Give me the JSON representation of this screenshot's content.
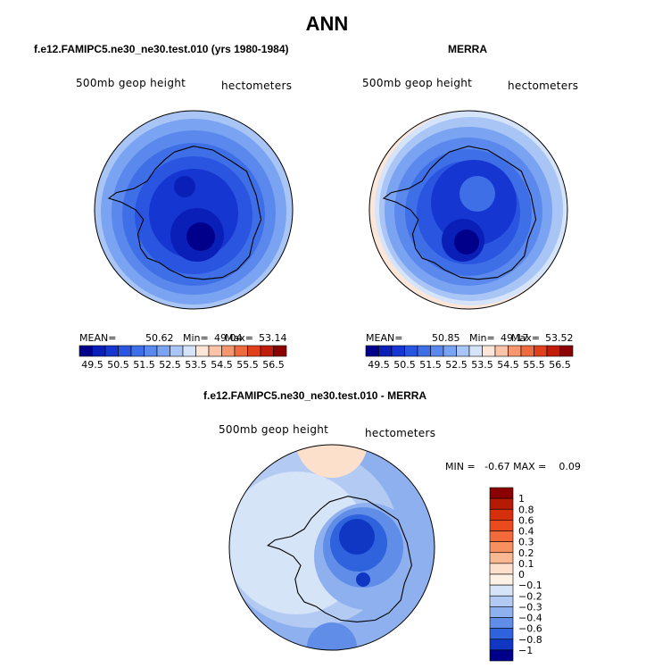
{
  "title": "ANN",
  "panel_left": {
    "case": "f.e12.FAMIPC5.ne30_ne30.test.010 (yrs 1980-1984)",
    "field": "500mb geop height",
    "units": "hectometers",
    "mean_label": "MEAN=",
    "mean": "50.62",
    "min_label": "Min=",
    "min": "49.04",
    "max_label": "Max=",
    "max": "53.14"
  },
  "panel_right": {
    "case": "MERRA",
    "field": "500mb geop height",
    "units": "hectometers",
    "mean_label": "MEAN=",
    "mean": "50.85",
    "min_label": "Min=",
    "min": "49.17",
    "max_label": "Max=",
    "max": "53.52"
  },
  "panel_diff": {
    "case": "f.e12.FAMIPC5.ne30_ne30.test.010 - MERRA",
    "field": "500mb geop height",
    "units": "hectometers",
    "minmax": "MIN =   -0.67 MAX =    0.09"
  },
  "chart_data": [
    {
      "type": "heatmap",
      "projection": "south-polar stereographic",
      "panel": "left",
      "colorbar_ticks": [
        "49.5",
        "50.5",
        "51.5",
        "52.5",
        "53.5",
        "54.5",
        "55.5",
        "56.5"
      ],
      "colorbar_colors": [
        "#00008b",
        "#0a1fb8",
        "#1536d0",
        "#2a55e0",
        "#3f6fe6",
        "#5a88ec",
        "#7aa3f2",
        "#a9c5f6",
        "#d5e4fb",
        "#fde6d8",
        "#fbc4a8",
        "#f5966e",
        "#ee6b40",
        "#e0401b",
        "#c11c08",
        "#8b0000"
      ],
      "mean": 50.62,
      "min": 49.04,
      "max": 53.14
    },
    {
      "type": "heatmap",
      "projection": "south-polar stereographic",
      "panel": "right",
      "colorbar_ticks": [
        "49.5",
        "50.5",
        "51.5",
        "52.5",
        "53.5",
        "54.5",
        "55.5",
        "56.5"
      ],
      "colorbar_colors": [
        "#00008b",
        "#0a1fb8",
        "#1536d0",
        "#2a55e0",
        "#3f6fe6",
        "#5a88ec",
        "#7aa3f2",
        "#a9c5f6",
        "#d5e4fb",
        "#fde6d8",
        "#fbc4a8",
        "#f5966e",
        "#ee6b40",
        "#e0401b",
        "#c11c08",
        "#8b0000"
      ],
      "mean": 50.85,
      "min": 49.17,
      "max": 53.52
    },
    {
      "type": "heatmap",
      "projection": "south-polar stereographic",
      "panel": "difference",
      "colorbar_ticks": [
        "1",
        "0.8",
        "0.6",
        "0.4",
        "0.3",
        "0.2",
        "0.1",
        "0",
        "−0.1",
        "−0.2",
        "−0.3",
        "−0.4",
        "−0.6",
        "−0.8",
        "−1"
      ],
      "colorbar_colors": [
        "#8b0000",
        "#b51a04",
        "#d5300b",
        "#ea4a1d",
        "#f26a3a",
        "#f6905f",
        "#f9b792",
        "#fde0cb",
        "#fdf0e4",
        "#d6e4f7",
        "#b3cbf2",
        "#8eb0ee",
        "#5f8de8",
        "#2f62dd",
        "#0f37c4",
        "#00008b"
      ],
      "min": -0.67,
      "max": 0.09
    }
  ]
}
